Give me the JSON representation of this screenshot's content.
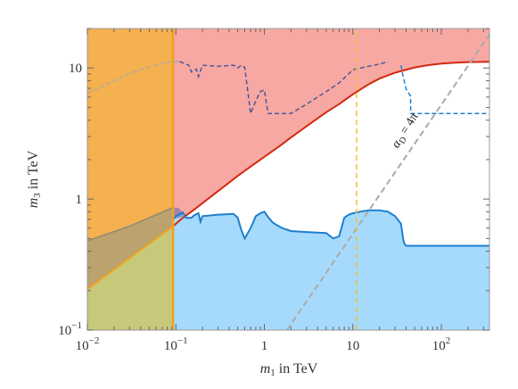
{
  "chart_data": {
    "type": "area",
    "xscale": "log",
    "yscale": "log",
    "xlim": [
      0.01,
      350
    ],
    "ylim": [
      0.1,
      20
    ],
    "xlabel": {
      "italic": "m",
      "sub": "1",
      "rest": " in TeV"
    },
    "ylabel": {
      "italic": "m",
      "sub": "3",
      "rest": " in TeV"
    },
    "xticks": [
      {
        "value": 0.01,
        "base": "10",
        "exp": "−2"
      },
      {
        "value": 0.1,
        "base": "10",
        "exp": "−1"
      },
      {
        "value": 1,
        "text": "1"
      },
      {
        "value": 10,
        "text": "10"
      },
      {
        "value": 100,
        "base": "10",
        "exp": "2"
      }
    ],
    "yticks": [
      {
        "value": 0.1,
        "base": "10",
        "exp": "−1"
      },
      {
        "value": 1,
        "text": "1"
      },
      {
        "value": 10,
        "text": "10"
      }
    ],
    "annotation": {
      "text": "αD = 4π",
      "alpha": "α",
      "sub": "D",
      "rest": " = 4π",
      "at": [
        1.05,
        0.98
      ]
    },
    "colors": {
      "orange_fill": "#f5b04f",
      "red_fill": "#f7a8a2",
      "blue_fill": "#a6dafc",
      "olive_fill": "#c8c87a",
      "red_line": "#d22a10",
      "blue_line": "#1d7fd0",
      "orange_line": "#f2a21c",
      "gray_line": "#aaaaaa",
      "purple_dash": "#4a5a9a",
      "yellow_dash": "#f1c232"
    },
    "series": [
      {
        "kind": "region",
        "color": "orange_fill",
        "x_range": [
          0.01,
          0.093
        ],
        "boundary": "vertical at x = 0.093, from y = 0.1 to 20"
      },
      {
        "kind": "region",
        "color": "red_fill",
        "above": "red_line",
        "x": [
          0.093,
          0.12,
          0.15,
          0.2,
          0.3,
          0.5,
          0.7,
          1,
          1.5,
          2,
          3,
          5,
          7,
          10,
          15,
          20,
          30,
          50,
          70,
          100,
          150,
          200,
          350
        ],
        "y": [
          0.62,
          0.72,
          0.8,
          0.93,
          1.15,
          1.5,
          1.77,
          2.1,
          2.55,
          2.95,
          3.6,
          4.6,
          5.3,
          6.3,
          7.5,
          8.3,
          9.2,
          10.1,
          10.5,
          10.8,
          11.0,
          11.1,
          11.15
        ]
      },
      {
        "kind": "curve",
        "color": "orange_line",
        "x": [
          0.01,
          0.02,
          0.04,
          0.093
        ],
        "y": [
          0.205,
          0.29,
          0.41,
          0.62
        ]
      },
      {
        "kind": "region",
        "color": "blue_fill",
        "below": "blue_line",
        "x": [
          0.093,
          0.1,
          0.12,
          0.13,
          0.15,
          0.16,
          0.18,
          0.19,
          0.2,
          0.3,
          0.45,
          0.5,
          0.55,
          0.6,
          0.7,
          0.8,
          0.9,
          1,
          1.1,
          1.25,
          1.4,
          1.6,
          2,
          3,
          5,
          6,
          7,
          8,
          9,
          10,
          12,
          15,
          20,
          25,
          30,
          35,
          37,
          38,
          40,
          50,
          70,
          100,
          200,
          350
        ],
        "y": [
          0.7,
          0.74,
          0.79,
          0.72,
          0.72,
          0.75,
          0.78,
          0.67,
          0.74,
          0.76,
          0.77,
          0.72,
          0.58,
          0.5,
          0.6,
          0.74,
          0.78,
          0.8,
          0.73,
          0.66,
          0.63,
          0.6,
          0.57,
          0.56,
          0.55,
          0.5,
          0.52,
          0.72,
          0.76,
          0.78,
          0.8,
          0.82,
          0.82,
          0.8,
          0.74,
          0.65,
          0.5,
          0.46,
          0.44,
          0.44,
          0.44,
          0.44,
          0.44,
          0.44
        ]
      },
      {
        "kind": "region",
        "color": "olive_fill",
        "x_range": [
          0.01,
          0.093
        ],
        "between": "y = 0.1 and orange_line"
      },
      {
        "kind": "region",
        "color": "olive_fill",
        "x": [
          0.01,
          0.03,
          0.06,
          0.093
        ],
        "y_top": [
          0.48,
          0.62,
          0.76,
          0.86
        ]
      },
      {
        "kind": "dashed",
        "color": "gray_line",
        "description": "gray dashed curve, upper left",
        "x": [
          0.01,
          0.02,
          0.03,
          0.05,
          0.07,
          0.09,
          0.11
        ],
        "y": [
          6.4,
          8.0,
          9.1,
          10.2,
          10.8,
          11.2,
          11.2
        ]
      },
      {
        "kind": "dashed",
        "color": "purple_dash",
        "x": [
          0.11,
          0.14,
          0.15,
          0.17,
          0.18,
          0.2,
          0.3,
          0.45,
          0.5,
          0.55,
          0.6,
          0.7,
          0.8,
          0.9,
          1,
          1.1,
          1.5,
          2,
          3,
          5,
          7,
          10,
          15,
          20,
          25
        ],
        "y": [
          11.2,
          10.5,
          9.3,
          9.8,
          8.6,
          10.5,
          10.3,
          10.5,
          10.0,
          10.5,
          10.1,
          4.5,
          5.6,
          6.6,
          6.8,
          4.5,
          4.5,
          4.5,
          5.3,
          6.6,
          7.7,
          9.7,
          10.3,
          10.7,
          11.2
        ]
      },
      {
        "kind": "dashed",
        "color": "blue_line",
        "x": [
          35,
          37,
          40,
          45,
          45,
          100,
          350
        ],
        "y": [
          10.5,
          8.7,
          6.9,
          6.1,
          4.5,
          4.5,
          4.5
        ]
      },
      {
        "kind": "dashed",
        "color": "gray_line",
        "description": "straight diagonal",
        "x": [
          1.8,
          350
        ],
        "y": [
          0.1,
          18
        ]
      },
      {
        "kind": "dashed",
        "color": "yellow_dash",
        "description": "vertical",
        "x": [
          11,
          11
        ],
        "y": [
          0.1,
          20
        ]
      }
    ]
  }
}
